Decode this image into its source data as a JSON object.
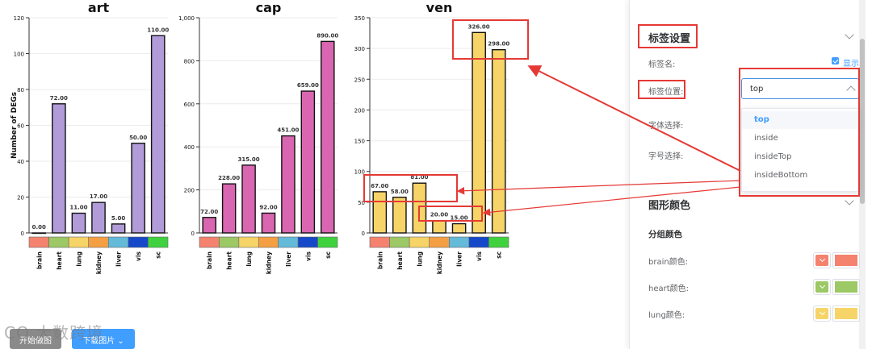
{
  "chart_data": [
    {
      "type": "bar",
      "title": "art",
      "categories": [
        "brain",
        "heart",
        "lung",
        "kidney",
        "liver",
        "vis",
        "sc"
      ],
      "values": [
        0,
        72,
        11,
        17,
        5,
        50,
        110
      ],
      "labels": [
        "0.00",
        "72.00",
        "11.00",
        "17.00",
        "5.00",
        "50.00",
        "110.00"
      ],
      "ylim": [
        0,
        120
      ],
      "yticks": [
        "0",
        "20",
        "40",
        "60",
        "80",
        "100",
        "120"
      ],
      "ylabel": "Number of DEGs",
      "color": "#b19cd9",
      "label_position": "top"
    },
    {
      "type": "bar",
      "title": "cap",
      "categories": [
        "brain",
        "heart",
        "lung",
        "kidney",
        "liver",
        "vis",
        "sc"
      ],
      "values": [
        72,
        228,
        315,
        92,
        451,
        659,
        890
      ],
      "labels": [
        "72.00",
        "228.00",
        "315.00",
        "92.00",
        "451.00",
        "659.00",
        "890.00"
      ],
      "ylim": [
        0,
        1000
      ],
      "yticks": [
        "0",
        "200",
        "400",
        "600",
        "800",
        "1,000"
      ],
      "ylabel": "",
      "color": "#d966b0",
      "label_position": "top"
    },
    {
      "type": "bar",
      "title": "ven",
      "categories": [
        "brain",
        "heart",
        "lung",
        "kidney",
        "liver",
        "vis",
        "sc"
      ],
      "values": [
        67,
        58,
        81,
        20,
        15,
        326,
        298
      ],
      "labels": [
        "67.00",
        "58.00",
        "81.00",
        "20.00",
        "15.00",
        "326.00",
        "298.00"
      ],
      "ylim": [
        0,
        350
      ],
      "yticks": [
        "0",
        "50",
        "100",
        "150",
        "200",
        "250",
        "300",
        "350"
      ],
      "ylabel": "",
      "color": "#f7d468",
      "label_position": "top"
    }
  ],
  "group_colors": [
    "#f4826e",
    "#9cc865",
    "#f7d468",
    "#f59f45",
    "#64bad9",
    "#1549c9",
    "#3fd23e"
  ],
  "panel": {
    "label_section_title": "标签设置",
    "label_name": "标签名:",
    "show_text": "显示",
    "label_position": "标签位置:",
    "label_position_value": "top",
    "options": [
      "top",
      "inside",
      "insideTop",
      "insideBottom"
    ],
    "font_select": "字体选择:",
    "font_size_select": "字号选择:",
    "shape_color_title": "图形颜色",
    "group_color_title": "分组颜色",
    "brain_color": "brain颜色:",
    "heart_color": "heart颜色:",
    "lung_color": "lung颜色:",
    "brain_hex": "#f4826e",
    "heart_hex": "#9cc865",
    "lung_hex": "#f7d468"
  },
  "buttons": {
    "start": "开始做图",
    "export": "下载图片"
  },
  "watermark": "CO 大数跨境"
}
